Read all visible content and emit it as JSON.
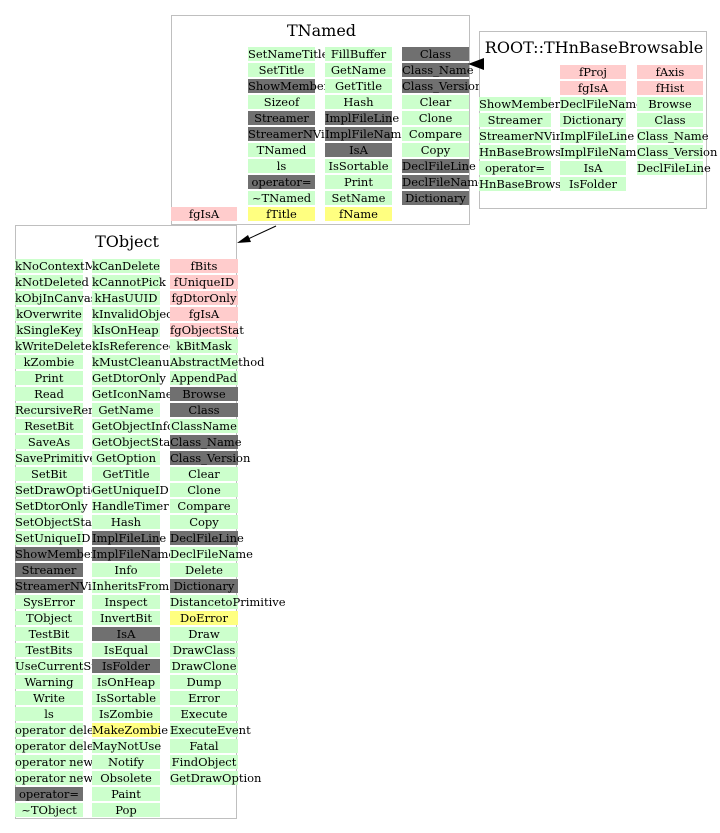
{
  "colors": {
    "method": "#ccffcc",
    "inherited": "#707070",
    "private": "#ffcccc",
    "highlighted": "#ffff80",
    "border": "#bfbfbf"
  },
  "tnamed": {
    "title": "TNamed",
    "col1": [
      {
        "t": "SetNameTitle",
        "k": "g"
      },
      {
        "t": "SetTitle",
        "k": "g"
      },
      {
        "t": "ShowMembers",
        "k": "d"
      },
      {
        "t": "Sizeof",
        "k": "g"
      },
      {
        "t": "Streamer",
        "k": "d"
      },
      {
        "t": "StreamerNVirtual",
        "k": "d"
      },
      {
        "t": "TNamed",
        "k": "g"
      },
      {
        "t": "ls",
        "k": "g"
      },
      {
        "t": "operator=",
        "k": "d"
      },
      {
        "t": "~TNamed",
        "k": "g"
      },
      {
        "t": "fTitle",
        "k": "y"
      }
    ],
    "col2": [
      {
        "t": "FillBuffer",
        "k": "g"
      },
      {
        "t": "GetName",
        "k": "g"
      },
      {
        "t": "GetTitle",
        "k": "g"
      },
      {
        "t": "Hash",
        "k": "g"
      },
      {
        "t": "ImplFileLine",
        "k": "d"
      },
      {
        "t": "ImplFileName",
        "k": "d"
      },
      {
        "t": "IsA",
        "k": "d"
      },
      {
        "t": "IsSortable",
        "k": "g"
      },
      {
        "t": "Print",
        "k": "g"
      },
      {
        "t": "SetName",
        "k": "g"
      },
      {
        "t": "fName",
        "k": "y"
      }
    ],
    "col3": [
      {
        "t": "Class",
        "k": "d"
      },
      {
        "t": "Class_Name",
        "k": "d"
      },
      {
        "t": "Class_Version",
        "k": "d"
      },
      {
        "t": "Clear",
        "k": "g"
      },
      {
        "t": "Clone",
        "k": "g"
      },
      {
        "t": "Compare",
        "k": "g"
      },
      {
        "t": "Copy",
        "k": "g"
      },
      {
        "t": "DeclFileLine",
        "k": "d"
      },
      {
        "t": "DeclFileName",
        "k": "d"
      },
      {
        "t": "Dictionary",
        "k": "d"
      }
    ],
    "outside": {
      "t": "fgIsA",
      "k": "p"
    }
  },
  "thn": {
    "title": "ROOT::THnBaseBrowsable",
    "col1": [
      {
        "t": "ShowMembers",
        "k": "g"
      },
      {
        "t": "Streamer",
        "k": "g"
      },
      {
        "t": "StreamerNVirtual",
        "k": "g"
      },
      {
        "t": "HnBaseBrowsable",
        "k": "g"
      },
      {
        "t": "operator=",
        "k": "g"
      },
      {
        "t": "HnBaseBrowsable",
        "k": "g"
      }
    ],
    "col2": [
      {
        "t": "fProj",
        "k": "p"
      },
      {
        "t": "fgIsA",
        "k": "p"
      },
      {
        "t": "DeclFileName",
        "k": "g"
      },
      {
        "t": "Dictionary",
        "k": "g"
      },
      {
        "t": "ImplFileLine",
        "k": "g"
      },
      {
        "t": "ImplFileName",
        "k": "g"
      },
      {
        "t": "IsA",
        "k": "g"
      },
      {
        "t": "IsFolder",
        "k": "g"
      }
    ],
    "col3": [
      {
        "t": "fAxis",
        "k": "p"
      },
      {
        "t": "fHist",
        "k": "p"
      },
      {
        "t": "Browse",
        "k": "g"
      },
      {
        "t": "Class",
        "k": "g"
      },
      {
        "t": "Class_Name",
        "k": "g"
      },
      {
        "t": "Class_Version",
        "k": "g"
      },
      {
        "t": "DeclFileLine",
        "k": "g"
      }
    ]
  },
  "tobject": {
    "title": "TObject",
    "col1": [
      {
        "t": "kNoContextMenu",
        "k": "g"
      },
      {
        "t": "kNotDeleted",
        "k": "g"
      },
      {
        "t": "kObjInCanvas",
        "k": "g"
      },
      {
        "t": "kOverwrite",
        "k": "g"
      },
      {
        "t": "kSingleKey",
        "k": "g"
      },
      {
        "t": "kWriteDelete",
        "k": "g"
      },
      {
        "t": "kZombie",
        "k": "g"
      },
      {
        "t": "Print",
        "k": "g"
      },
      {
        "t": "Read",
        "k": "g"
      },
      {
        "t": "RecursiveRemove",
        "k": "g"
      },
      {
        "t": "ResetBit",
        "k": "g"
      },
      {
        "t": "SaveAs",
        "k": "g"
      },
      {
        "t": "SavePrimitive",
        "k": "g"
      },
      {
        "t": "SetBit",
        "k": "g"
      },
      {
        "t": "SetDrawOption",
        "k": "g"
      },
      {
        "t": "SetDtorOnly",
        "k": "g"
      },
      {
        "t": "SetObjectStat",
        "k": "g"
      },
      {
        "t": "SetUniqueID",
        "k": "g"
      },
      {
        "t": "ShowMembers",
        "k": "d"
      },
      {
        "t": "Streamer",
        "k": "d"
      },
      {
        "t": "StreamerNVirtual",
        "k": "d"
      },
      {
        "t": "SysError",
        "k": "g"
      },
      {
        "t": "TObject",
        "k": "g"
      },
      {
        "t": "TestBit",
        "k": "g"
      },
      {
        "t": "TestBits",
        "k": "g"
      },
      {
        "t": "UseCurrentStyle",
        "k": "g"
      },
      {
        "t": "Warning",
        "k": "g"
      },
      {
        "t": "Write",
        "k": "g"
      },
      {
        "t": "ls",
        "k": "g"
      },
      {
        "t": "operator delete",
        "k": "g"
      },
      {
        "t": "operator delete[]",
        "k": "g"
      },
      {
        "t": "operator new",
        "k": "g"
      },
      {
        "t": "operator new[]",
        "k": "g"
      },
      {
        "t": "operator=",
        "k": "d"
      },
      {
        "t": "~TObject",
        "k": "g"
      }
    ],
    "col2": [
      {
        "t": "kCanDelete",
        "k": "g"
      },
      {
        "t": "kCannotPick",
        "k": "g"
      },
      {
        "t": "kHasUUID",
        "k": "g"
      },
      {
        "t": "kInvalidObject",
        "k": "g"
      },
      {
        "t": "kIsOnHeap",
        "k": "g"
      },
      {
        "t": "kIsReferenced",
        "k": "g"
      },
      {
        "t": "kMustCleanup",
        "k": "g"
      },
      {
        "t": "GetDtorOnly",
        "k": "g"
      },
      {
        "t": "GetIconName",
        "k": "g"
      },
      {
        "t": "GetName",
        "k": "g"
      },
      {
        "t": "GetObjectInfo",
        "k": "g"
      },
      {
        "t": "GetObjectStat",
        "k": "g"
      },
      {
        "t": "GetOption",
        "k": "g"
      },
      {
        "t": "GetTitle",
        "k": "g"
      },
      {
        "t": "GetUniqueID",
        "k": "g"
      },
      {
        "t": "HandleTimer",
        "k": "g"
      },
      {
        "t": "Hash",
        "k": "g"
      },
      {
        "t": "ImplFileLine",
        "k": "d"
      },
      {
        "t": "ImplFileName",
        "k": "d"
      },
      {
        "t": "Info",
        "k": "g"
      },
      {
        "t": "InheritsFrom",
        "k": "g"
      },
      {
        "t": "Inspect",
        "k": "g"
      },
      {
        "t": "InvertBit",
        "k": "g"
      },
      {
        "t": "IsA",
        "k": "d"
      },
      {
        "t": "IsEqual",
        "k": "g"
      },
      {
        "t": "IsFolder",
        "k": "d"
      },
      {
        "t": "IsOnHeap",
        "k": "g"
      },
      {
        "t": "IsSortable",
        "k": "g"
      },
      {
        "t": "IsZombie",
        "k": "g"
      },
      {
        "t": "MakeZombie",
        "k": "y"
      },
      {
        "t": "MayNotUse",
        "k": "g"
      },
      {
        "t": "Notify",
        "k": "g"
      },
      {
        "t": "Obsolete",
        "k": "g"
      },
      {
        "t": "Paint",
        "k": "g"
      },
      {
        "t": "Pop",
        "k": "g"
      }
    ],
    "col3": [
      {
        "t": "fBits",
        "k": "p"
      },
      {
        "t": "fUniqueID",
        "k": "p"
      },
      {
        "t": "fgDtorOnly",
        "k": "p"
      },
      {
        "t": "fgIsA",
        "k": "p"
      },
      {
        "t": "fgObjectStat",
        "k": "p"
      },
      {
        "t": "kBitMask",
        "k": "g"
      },
      {
        "t": "AbstractMethod",
        "k": "g"
      },
      {
        "t": "AppendPad",
        "k": "g"
      },
      {
        "t": "Browse",
        "k": "d"
      },
      {
        "t": "Class",
        "k": "d"
      },
      {
        "t": "ClassName",
        "k": "g"
      },
      {
        "t": "Class_Name",
        "k": "d"
      },
      {
        "t": "Class_Version",
        "k": "d"
      },
      {
        "t": "Clear",
        "k": "g"
      },
      {
        "t": "Clone",
        "k": "g"
      },
      {
        "t": "Compare",
        "k": "g"
      },
      {
        "t": "Copy",
        "k": "g"
      },
      {
        "t": "DeclFileLine",
        "k": "d"
      },
      {
        "t": "DeclFileName",
        "k": "g"
      },
      {
        "t": "Delete",
        "k": "g"
      },
      {
        "t": "Dictionary",
        "k": "d"
      },
      {
        "t": "DistancetoPrimitive",
        "k": "g"
      },
      {
        "t": "DoError",
        "k": "y"
      },
      {
        "t": "Draw",
        "k": "g"
      },
      {
        "t": "DrawClass",
        "k": "g"
      },
      {
        "t": "DrawClone",
        "k": "g"
      },
      {
        "t": "Dump",
        "k": "g"
      },
      {
        "t": "Error",
        "k": "g"
      },
      {
        "t": "Execute",
        "k": "g"
      },
      {
        "t": "ExecuteEvent",
        "k": "g"
      },
      {
        "t": "Fatal",
        "k": "g"
      },
      {
        "t": "FindObject",
        "k": "g"
      },
      {
        "t": "GetDrawOption",
        "k": "g"
      }
    ]
  }
}
